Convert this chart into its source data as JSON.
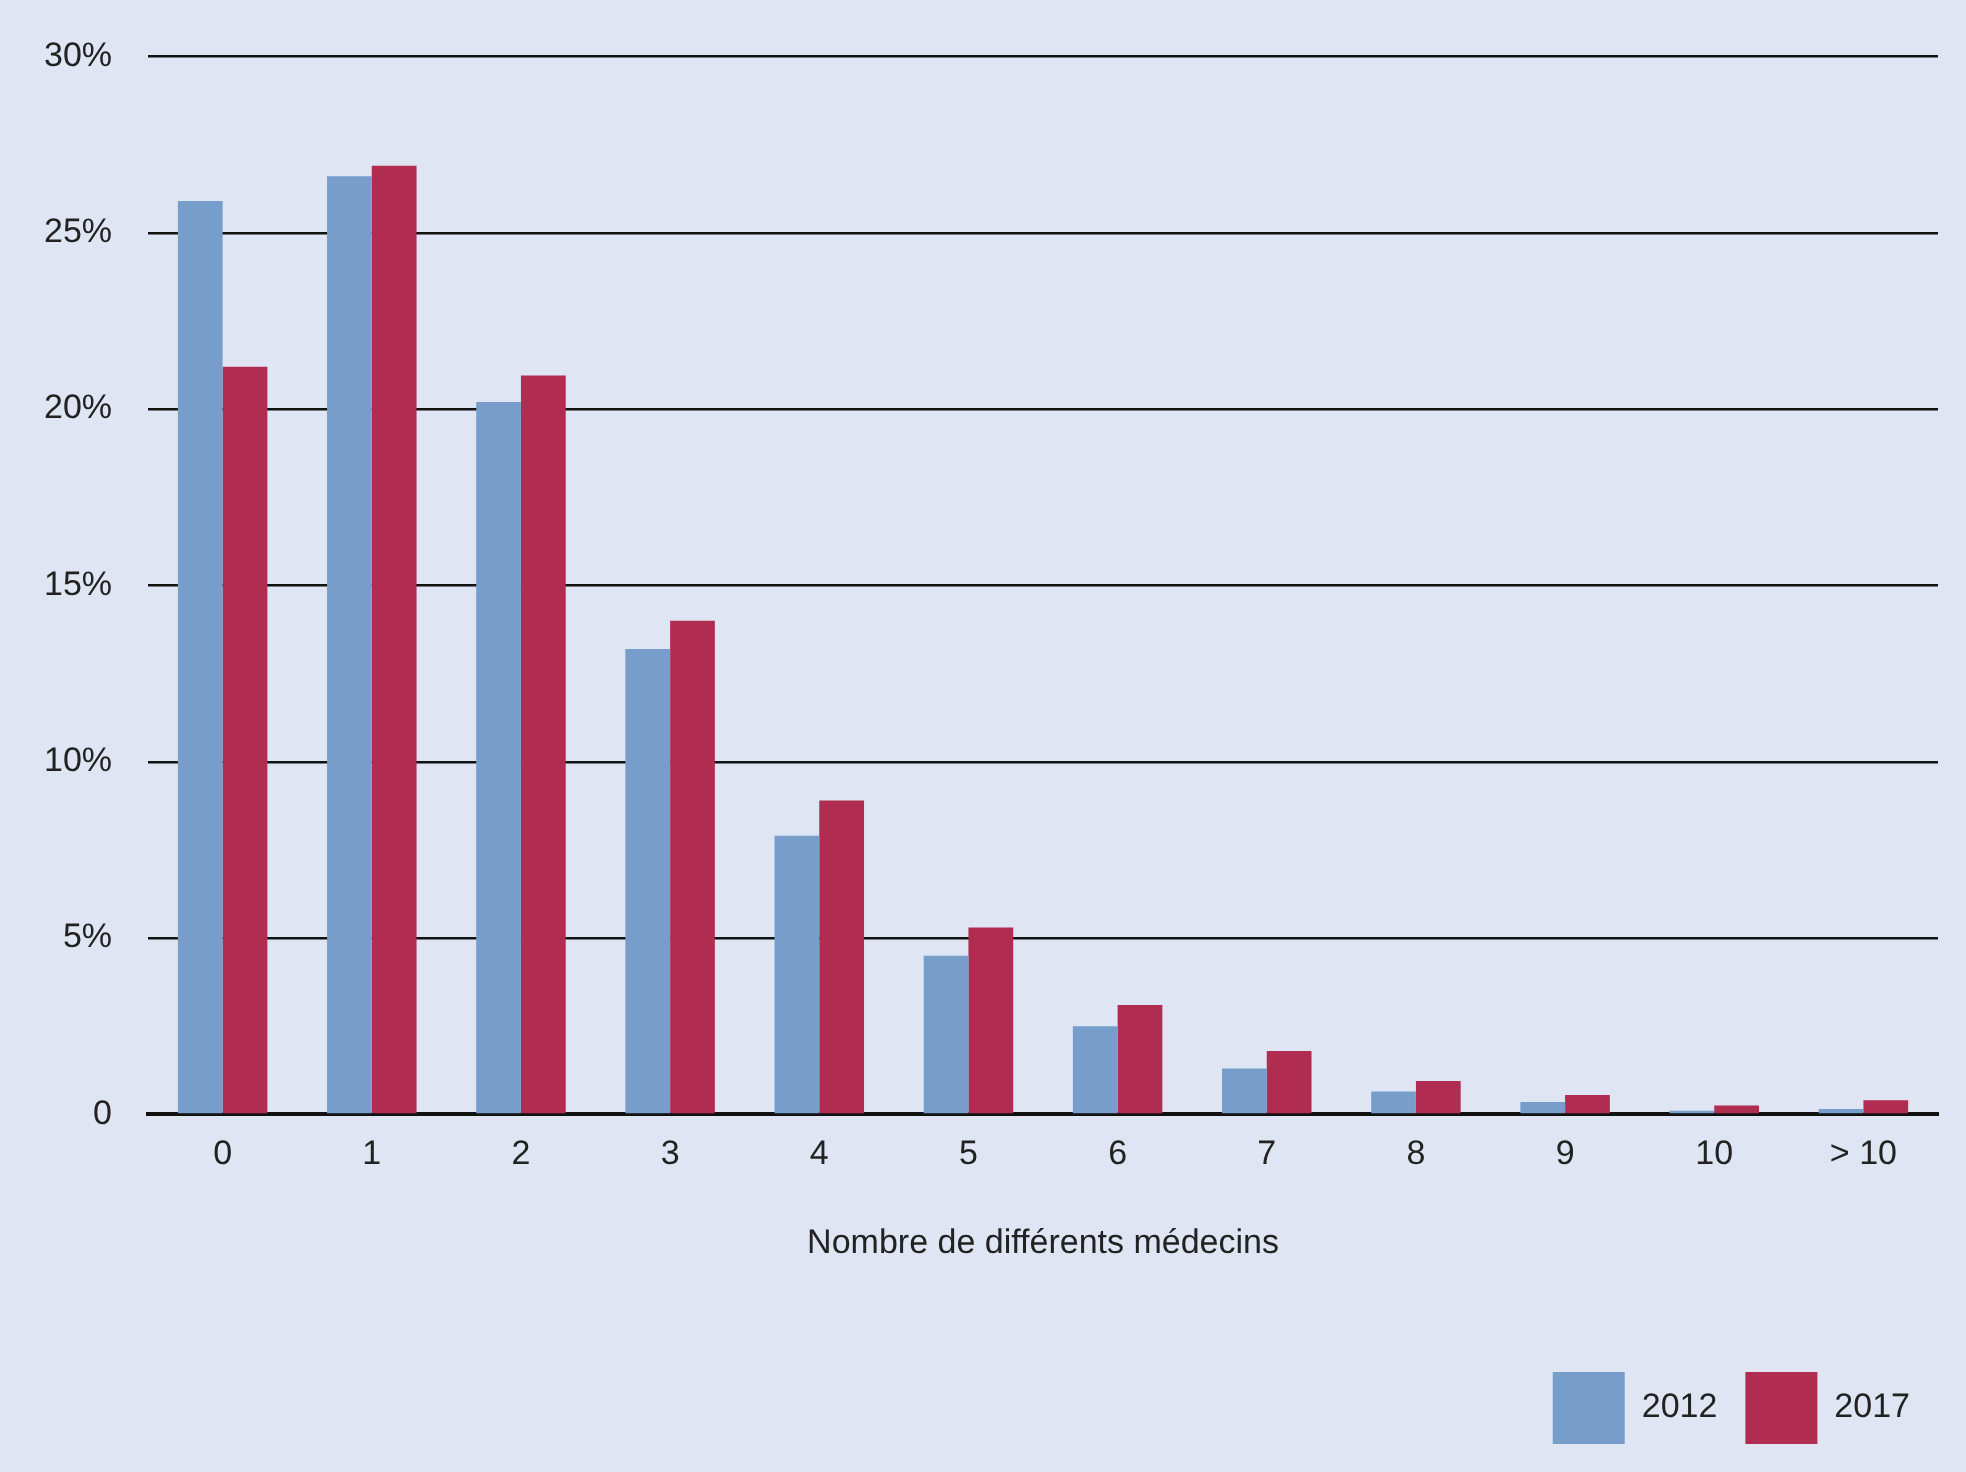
{
  "chart_data": {
    "type": "bar",
    "xlabel": "Nombre de différents médecins",
    "categories": [
      "0",
      "1",
      "2",
      "3",
      "4",
      "5",
      "6",
      "7",
      "8",
      "9",
      "10",
      "> 10"
    ],
    "series": [
      {
        "name": "2012",
        "color": "#779dcb",
        "values": [
          25.9,
          26.6,
          20.2,
          13.2,
          7.9,
          4.5,
          2.5,
          1.3,
          0.65,
          0.35,
          0.1,
          0.15
        ]
      },
      {
        "name": "2017",
        "color": "#b02c50",
        "values": [
          21.2,
          26.9,
          20.95,
          14.0,
          8.9,
          5.3,
          3.1,
          1.8,
          0.95,
          0.55,
          0.25,
          0.4
        ]
      }
    ],
    "ylim": [
      0,
      30
    ],
    "yticks": [
      {
        "value": 0,
        "label": "0"
      },
      {
        "value": 5,
        "label": "5%"
      },
      {
        "value": 10,
        "label": "10%"
      },
      {
        "value": 15,
        "label": "15%"
      },
      {
        "value": 20,
        "label": "20%"
      },
      {
        "value": 25,
        "label": "25%"
      },
      {
        "value": 30,
        "label": "30%"
      }
    ],
    "grid": "y",
    "legend": "bottom right"
  }
}
